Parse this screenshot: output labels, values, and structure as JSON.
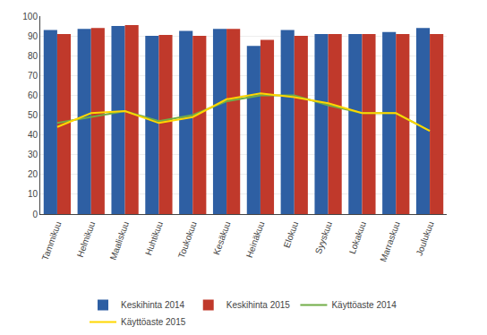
{
  "chart_data": {
    "type": "bar",
    "categories": [
      "Tammikuu",
      "Helmikuu",
      "Maaliskuu",
      "Huhtikuu",
      "Toukokuu",
      "Kesäkuu",
      "Heinäkuu",
      "Elokuu",
      "Syyskuu",
      "Lokakuu",
      "Marraskuu",
      "Joulukuu"
    ],
    "series": [
      {
        "name": "Keskihinta 2014",
        "type": "bar",
        "color": "#2E5FA3",
        "values": [
          93,
          93.5,
          95,
          90,
          92.5,
          93.5,
          85,
          93,
          91,
          91,
          92,
          94
        ]
      },
      {
        "name": "Keskihinta 2015",
        "type": "bar",
        "color": "#C0392B",
        "values": [
          91,
          94,
          95.5,
          90.5,
          90,
          93.5,
          88,
          90,
          91,
          91,
          91,
          91
        ]
      },
      {
        "name": "Käyttöaste 2014",
        "type": "line",
        "color": "#70AD47",
        "values": [
          46,
          49,
          52,
          47,
          50,
          57,
          60,
          60,
          55,
          51,
          51,
          42
        ]
      },
      {
        "name": "Käyttöaste 2015",
        "type": "line",
        "color": "#FFD700",
        "values": [
          44,
          51,
          52,
          46,
          49,
          58,
          61,
          59,
          56,
          51,
          51,
          42
        ]
      }
    ],
    "ylim": [
      0,
      100
    ],
    "yticks": [
      0,
      10,
      20,
      30,
      40,
      50,
      60,
      70,
      80,
      90,
      100
    ],
    "y2lim": [
      0,
      100
    ],
    "y2ticks": [
      0,
      10,
      20,
      30,
      40,
      50,
      60,
      70,
      80,
      90,
      100
    ],
    "grid": true,
    "legend": "bottom"
  }
}
